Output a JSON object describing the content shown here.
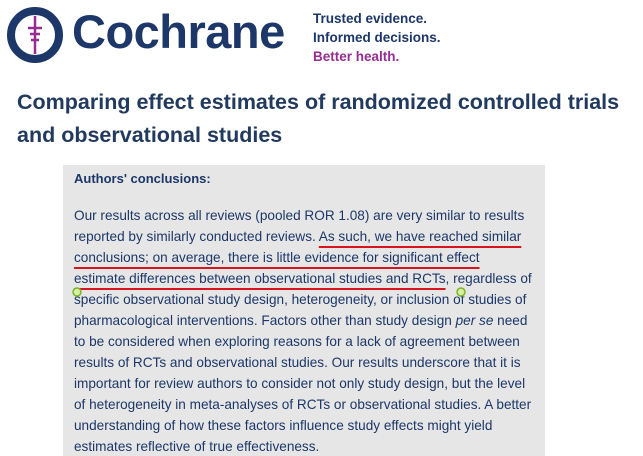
{
  "header": {
    "brand": "Cochrane",
    "tagline": [
      "Trusted evidence.",
      "Informed decisions.",
      "Better health."
    ]
  },
  "article": {
    "title": "Comparing effect estimates of randomized controlled trials and observational studies",
    "section": {
      "heading": "Authors' conclusions:",
      "lines": [
        [
          "Our results across all reviews (pooled ROR 1.08) are very similar to results"
        ],
        [
          "reported by similarly conducted reviews. ",
          "As such, we have reached similar"
        ],
        [
          "conclusions; on average, there is little evidence for significant effect"
        ],
        [
          "estimate differences between observational studies and RCTs",
          ", regardless of"
        ],
        [
          "specific observational study design, heterogeneity, or inclusion of studies of"
        ],
        [
          "pharmacological interventions. Factors other than study design ",
          "per se",
          " need"
        ],
        [
          "to be considered when exploring reasons for a lack of agreement between"
        ],
        [
          "results of RCTs and observational studies. Our results underscore that it is"
        ],
        [
          "important for review authors to consider not only study design, but the level"
        ],
        [
          "of heterogeneity in meta-analyses of RCTs or observational studies. A better"
        ],
        [
          "understanding of how these factors influence study effects might yield"
        ],
        [
          "estimates reflective of true effectiveness."
        ]
      ]
    }
  }
}
